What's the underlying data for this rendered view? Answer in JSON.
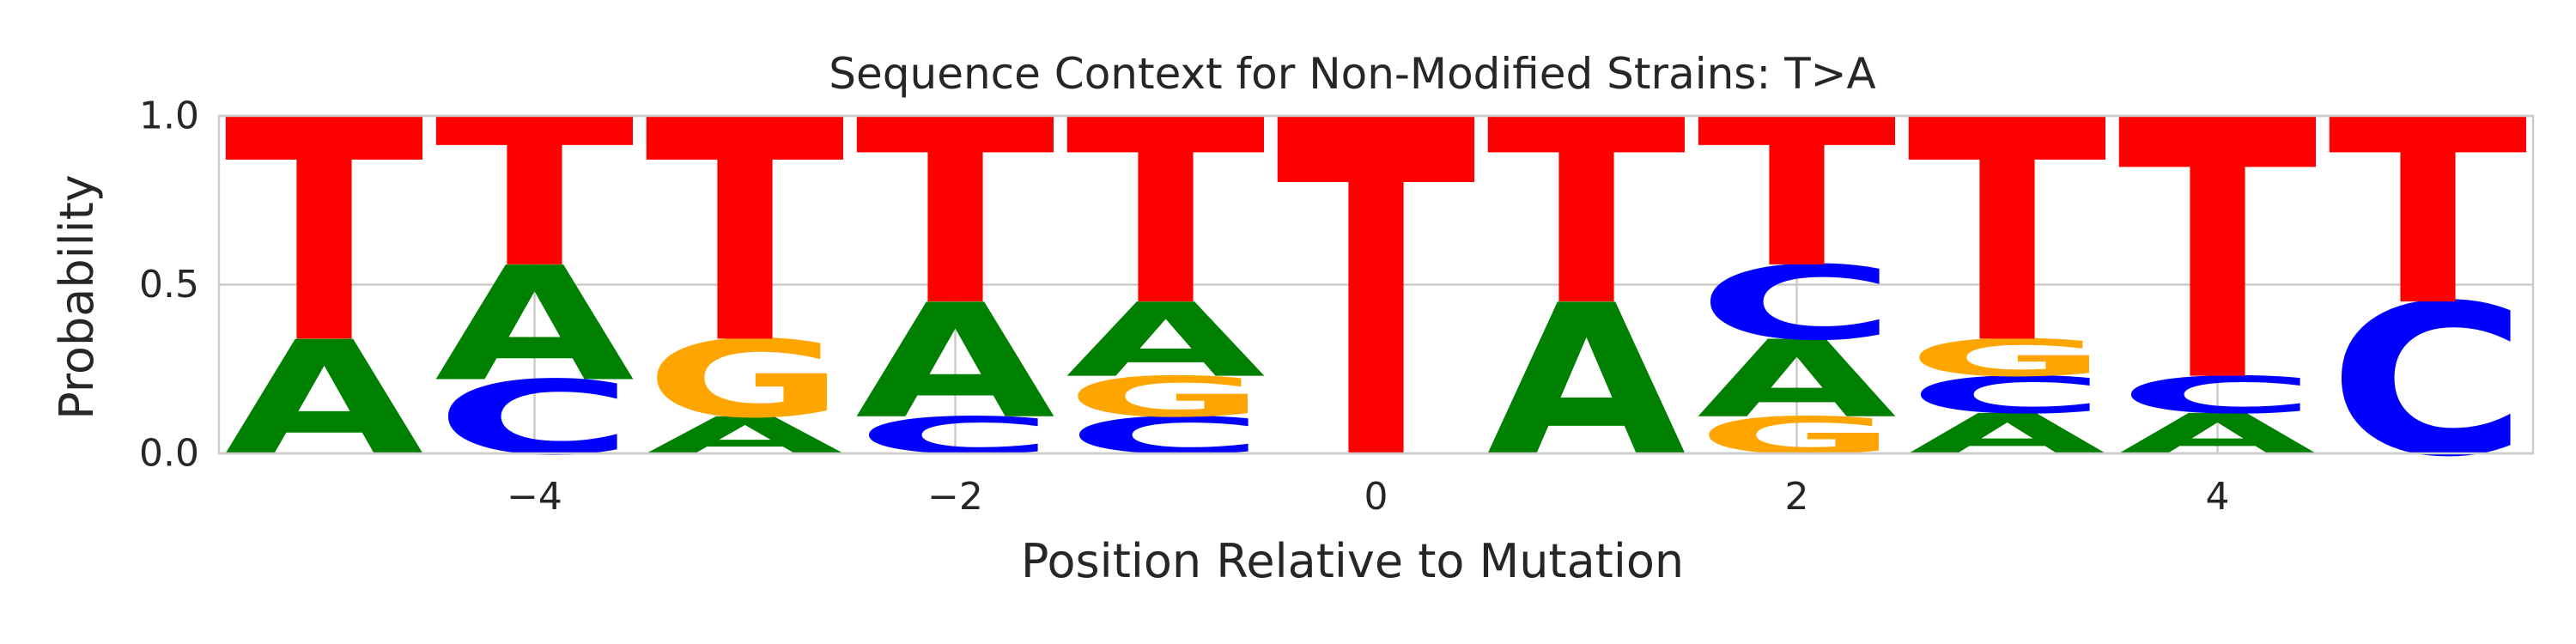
{
  "chart_data": {
    "type": "sequence_logo",
    "title": "Sequence Context for Non-Modified Strains: T>A",
    "xlabel": "Position Relative to Mutation",
    "ylabel": "Probability",
    "xlim": [
      -5.5,
      5.5
    ],
    "ylim": [
      0,
      1
    ],
    "xticks": [
      -4,
      -2,
      0,
      2,
      4
    ],
    "xtick_labels": [
      "−4",
      "−2",
      "0",
      "2",
      "4"
    ],
    "yticks": [
      0,
      0.5,
      1
    ],
    "ytick_labels": [
      "0.0",
      "0.5",
      "1.0"
    ],
    "grid": true,
    "colors": {
      "A": "#008000",
      "C": "#0000ff",
      "G": "#ffa500",
      "T": "#ff0000"
    },
    "positions": [
      {
        "x": -5,
        "stack": [
          {
            "base": "A",
            "p": 0.34
          },
          {
            "base": "T",
            "p": 0.66
          }
        ]
      },
      {
        "x": -4,
        "stack": [
          {
            "base": "C",
            "p": 0.22
          },
          {
            "base": "A",
            "p": 0.34
          },
          {
            "base": "T",
            "p": 0.44
          }
        ]
      },
      {
        "x": -3,
        "stack": [
          {
            "base": "A",
            "p": 0.11
          },
          {
            "base": "G",
            "p": 0.23
          },
          {
            "base": "T",
            "p": 0.66
          }
        ]
      },
      {
        "x": -2,
        "stack": [
          {
            "base": "C",
            "p": 0.11
          },
          {
            "base": "A",
            "p": 0.34
          },
          {
            "base": "T",
            "p": 0.55
          }
        ]
      },
      {
        "x": -1,
        "stack": [
          {
            "base": "C",
            "p": 0.11
          },
          {
            "base": "G",
            "p": 0.12
          },
          {
            "base": "A",
            "p": 0.22
          },
          {
            "base": "T",
            "p": 0.55
          }
        ]
      },
      {
        "x": 0,
        "stack": [
          {
            "base": "T",
            "p": 1.0
          }
        ]
      },
      {
        "x": 1,
        "stack": [
          {
            "base": "A",
            "p": 0.45
          },
          {
            "base": "T",
            "p": 0.55
          }
        ]
      },
      {
        "x": 2,
        "stack": [
          {
            "base": "G",
            "p": 0.11
          },
          {
            "base": "A",
            "p": 0.23
          },
          {
            "base": "C",
            "p": 0.22
          },
          {
            "base": "T",
            "p": 0.44
          }
        ]
      },
      {
        "x": 3,
        "stack": [
          {
            "base": "A",
            "p": 0.12
          },
          {
            "base": "C",
            "p": 0.11
          },
          {
            "base": "G",
            "p": 0.11
          },
          {
            "base": "T",
            "p": 0.66
          }
        ]
      },
      {
        "x": 4,
        "stack": [
          {
            "base": "A",
            "p": 0.12
          },
          {
            "base": "C",
            "p": 0.11
          },
          {
            "base": "T",
            "p": 0.77
          }
        ]
      },
      {
        "x": 5,
        "stack": [
          {
            "base": "C",
            "p": 0.45
          },
          {
            "base": "T",
            "p": 0.55
          }
        ]
      }
    ]
  }
}
